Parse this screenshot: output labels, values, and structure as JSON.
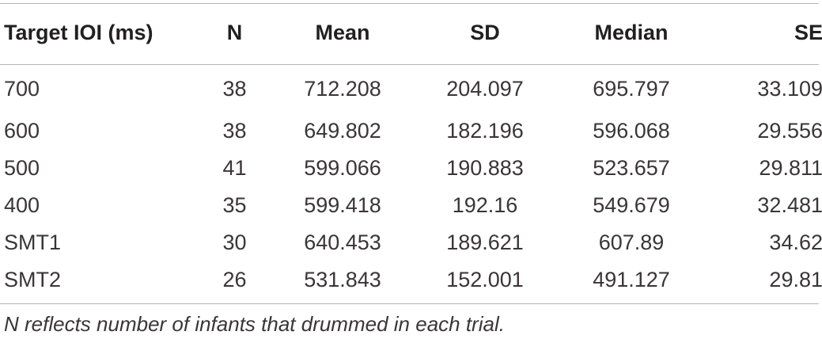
{
  "table": {
    "headers": [
      "Target IOI (ms)",
      "N",
      "Mean",
      "SD",
      "Median",
      "SE"
    ],
    "rows": [
      [
        "700",
        "38",
        "712.208",
        "204.097",
        "695.797",
        "33.109"
      ],
      [
        "600",
        "38",
        "649.802",
        "182.196",
        "596.068",
        "29.556"
      ],
      [
        "500",
        "41",
        "599.066",
        "190.883",
        "523.657",
        "29.811"
      ],
      [
        "400",
        "35",
        "599.418",
        "192.16",
        "549.679",
        "32.481"
      ],
      [
        "SMT1",
        "30",
        "640.453",
        "189.621",
        "607.89",
        "34.62"
      ],
      [
        "SMT2",
        "26",
        "531.843",
        "152.001",
        "491.127",
        "29.81"
      ]
    ]
  },
  "footnote": "N reflects number of infants that drummed in each trial.",
  "colors": {
    "text": "#231f20",
    "rule": "#b5b5b5",
    "background": "#ffffff"
  }
}
